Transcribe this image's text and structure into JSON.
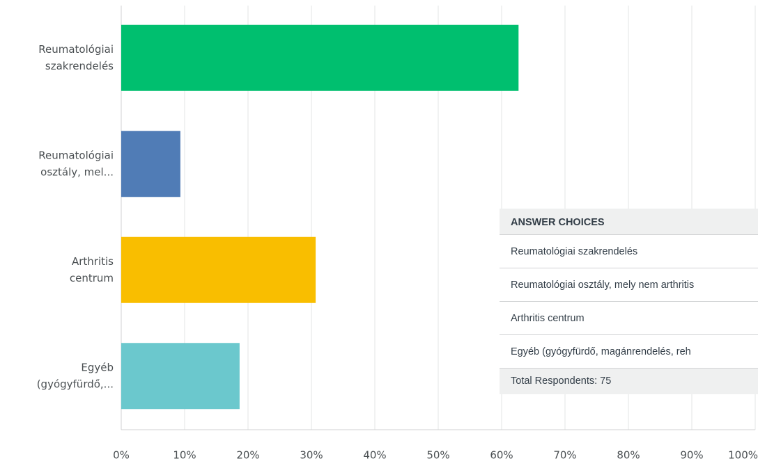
{
  "chart_data": {
    "type": "bar",
    "orientation": "horizontal",
    "categories": [
      [
        "Reumatológiai",
        "szakrendelés"
      ],
      [
        "Reumatológiai",
        "osztály, mel..."
      ],
      [
        "Arthritis",
        "centrum"
      ],
      [
        "Egyéb",
        "(gyógyfürdő,..."
      ]
    ],
    "values": [
      62.67,
      9.33,
      30.67,
      18.67
    ],
    "colors": [
      "#00bf6f",
      "#507cb6",
      "#f9be00",
      "#6bc8cd"
    ],
    "xlim": [
      0,
      100
    ],
    "xticks": [
      {
        "value": 0,
        "label": "0%"
      },
      {
        "value": 10,
        "label": "10%"
      },
      {
        "value": 20,
        "label": "20%"
      },
      {
        "value": 30,
        "label": "30%"
      },
      {
        "value": 40,
        "label": "40%"
      },
      {
        "value": 50,
        "label": "50%"
      },
      {
        "value": 60,
        "label": "60%"
      },
      {
        "value": 70,
        "label": "70%"
      },
      {
        "value": 80,
        "label": "80%"
      },
      {
        "value": 90,
        "label": "90%"
      },
      {
        "value": 100,
        "label": "100%"
      }
    ],
    "grid": true
  },
  "table": {
    "header": "ANSWER CHOICES",
    "rows": [
      "Reumatológiai szakrendelés",
      "Reumatológiai osztály, mely nem arthritis",
      "Arthritis centrum",
      "Egyéb (gyógyfürdő, magánrendelés, reh"
    ],
    "footer": "Total Respondents: 75"
  }
}
